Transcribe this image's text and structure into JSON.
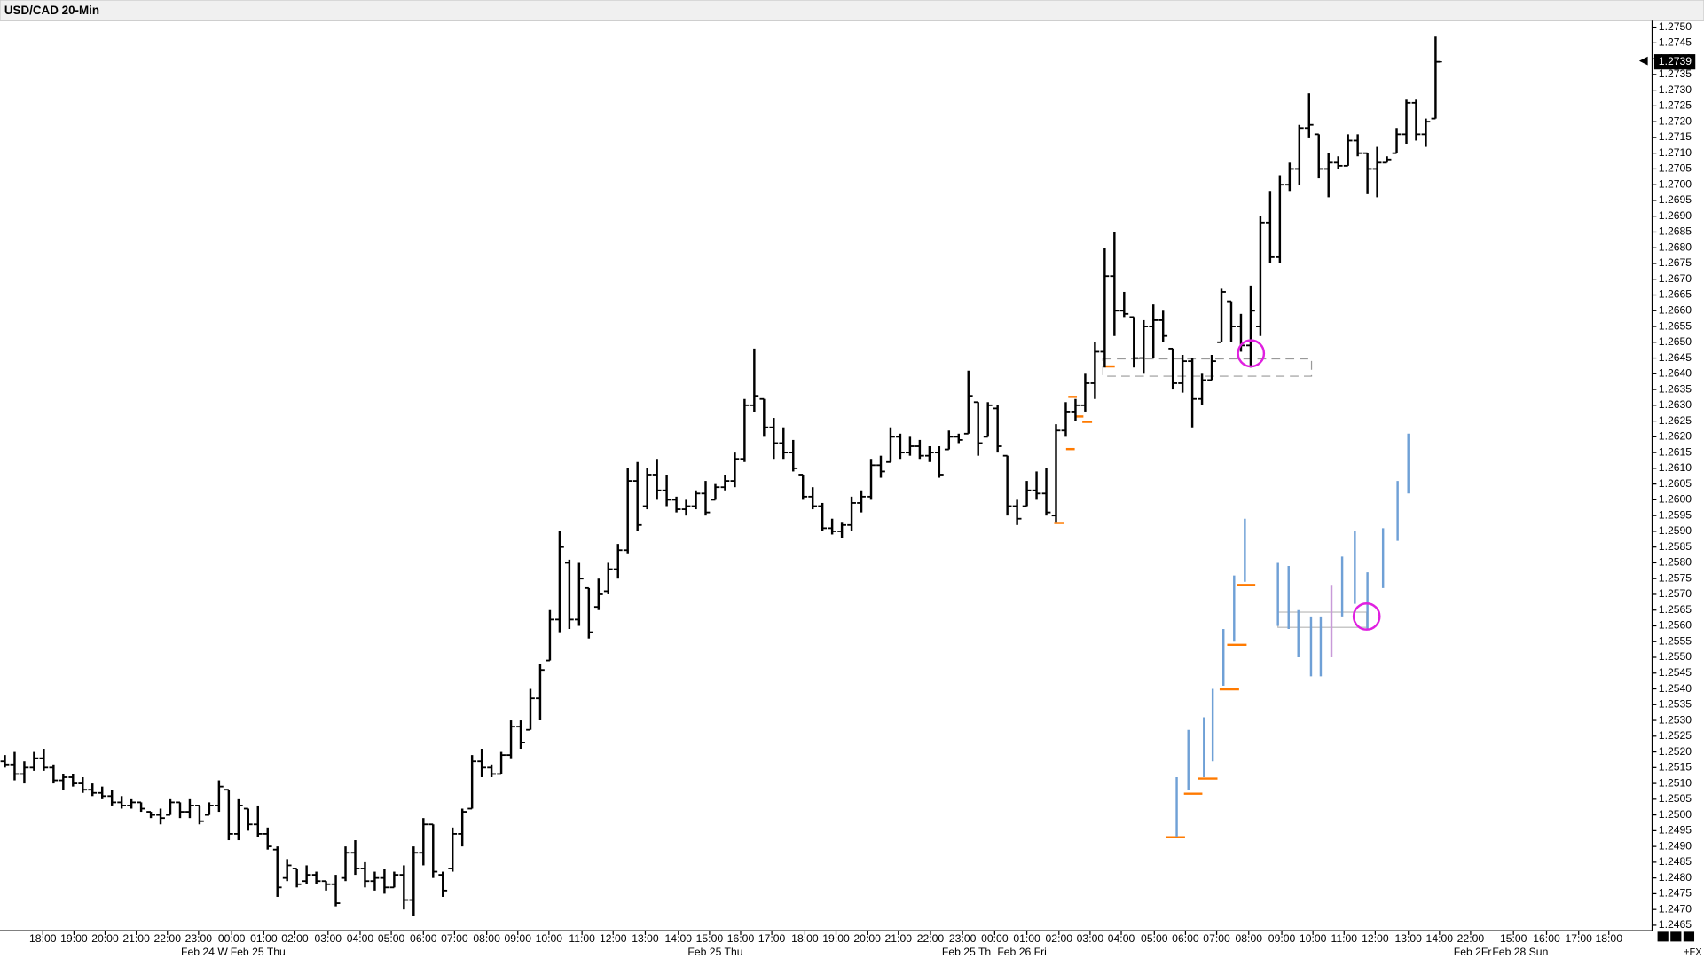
{
  "chart_data": {
    "type": "ohlc",
    "title": "USD/CAD 20-Min",
    "footer_label": "+FX",
    "color": "#000000",
    "open": [
      1.2517,
      1.2516,
      1.2513,
      1.2515,
      1.2518,
      1.2515,
      1.2511,
      1.2512,
      1.251,
      1.2508,
      1.2507,
      1.2506,
      1.2504,
      1.2503,
      1.2504,
      1.2501,
      1.25,
      1.25,
      1.2504,
      1.2501,
      1.2503,
      1.25,
      1.2503,
      1.2508,
      1.2494,
      1.2502,
      1.2497,
      1.2494,
      1.2489,
      1.248,
      1.2483,
      1.2479,
      1.2481,
      1.2479,
      1.2478,
      1.248,
      1.2488,
      1.2483,
      1.2479,
      1.248,
      1.2477,
      1.2481,
      1.2473,
      1.2488,
      1.2497,
      1.2481,
      1.2483,
      1.2494,
      1.2502,
      1.2517,
      1.2515,
      1.2513,
      1.2519,
      1.2528,
      1.2527,
      1.2537,
      1.2549,
      1.2562,
      1.258,
      1.2562,
      1.2572,
      1.2566,
      1.2571,
      1.2578,
      1.2584,
      1.2606,
      1.2598,
      1.2608,
      1.2603,
      1.26,
      1.2597,
      1.2598,
      1.2602,
      1.26,
      1.2604,
      1.2606,
      1.2613,
      1.263,
      1.2632,
      1.2623,
      1.2618,
      1.2615,
      1.2608,
      1.2601,
      1.2598,
      1.2591,
      1.259,
      1.2592,
      1.2599,
      1.2601,
      1.2611,
      1.2612,
      1.262,
      1.2615,
      1.2617,
      1.2614,
      1.2615,
      1.2616,
      1.262,
      1.2621,
      1.2631,
      1.262,
      1.2629,
      1.2614,
      1.2598,
      1.2598,
      1.2603,
      1.2602,
      1.2595,
      1.2622,
      1.2628,
      1.263,
      1.2637,
      1.2647,
      1.2671,
      1.266,
      1.2658,
      1.2645,
      1.2655,
      1.2657,
      1.2648,
      1.2637,
      1.2644,
      1.2632,
      1.2638,
      1.265,
      1.2663,
      1.2655,
      1.2649,
      1.2655,
      1.2688,
      1.2677,
      1.27,
      1.2705,
      1.2718,
      1.2716,
      1.2705,
      1.2707,
      1.2706,
      1.2714,
      1.271,
      1.2705,
      1.2707,
      1.271,
      1.2716,
      1.2726,
      1.2716,
      1.2721
    ],
    "high": [
      1.2519,
      1.252,
      1.2517,
      1.252,
      1.2521,
      1.2516,
      1.2513,
      1.2513,
      1.2512,
      1.251,
      1.2509,
      1.2508,
      1.2506,
      1.2505,
      1.2504,
      1.2501,
      1.2502,
      1.2505,
      1.2504,
      1.2505,
      1.2503,
      1.2504,
      1.2511,
      1.2508,
      1.2505,
      1.2502,
      1.2503,
      1.2496,
      1.249,
      1.2486,
      1.2483,
      1.2484,
      1.2482,
      1.2479,
      1.2481,
      1.249,
      1.2492,
      1.2485,
      1.2482,
      1.2483,
      1.2482,
      1.2484,
      1.249,
      1.2499,
      1.2497,
      1.2482,
      1.2496,
      1.2502,
      1.2519,
      1.2521,
      1.2516,
      1.252,
      1.253,
      1.253,
      1.254,
      1.2548,
      1.2565,
      1.259,
      1.2581,
      1.258,
      1.2572,
      1.2575,
      1.258,
      1.2586,
      1.261,
      1.2612,
      1.261,
      1.2613,
      1.2608,
      1.2601,
      1.26,
      1.2603,
      1.2606,
      1.2605,
      1.2608,
      1.2615,
      1.2632,
      1.2648,
      1.2632,
      1.2626,
      1.2623,
      1.2619,
      1.2608,
      1.2604,
      1.2599,
      1.2594,
      1.2593,
      1.2601,
      1.2603,
      1.2613,
      1.2614,
      1.2623,
      1.2621,
      1.262,
      1.2619,
      1.2617,
      1.2617,
      1.2622,
      1.2621,
      1.2641,
      1.2631,
      1.2631,
      1.263,
      1.2614,
      1.26,
      1.2606,
      1.2609,
      1.261,
      1.2624,
      1.2631,
      1.2632,
      1.264,
      1.265,
      1.268,
      1.2685,
      1.2666,
      1.2658,
      1.2657,
      1.2662,
      1.266,
      1.2648,
      1.2646,
      1.2645,
      1.264,
      1.2646,
      1.2667,
      1.2663,
      1.2659,
      1.2668,
      1.269,
      1.2698,
      1.2703,
      1.2707,
      1.2719,
      1.2729,
      1.2716,
      1.271,
      1.2709,
      1.2716,
      1.2716,
      1.271,
      1.2712,
      1.2709,
      1.2718,
      1.2727,
      1.2727,
      1.2721,
      1.2747
    ],
    "low": [
      1.2515,
      1.2511,
      1.251,
      1.2514,
      1.2514,
      1.251,
      1.2508,
      1.2509,
      1.2507,
      1.2506,
      1.2505,
      1.2503,
      1.2502,
      1.2502,
      1.2501,
      1.2499,
      1.2497,
      1.25,
      1.2499,
      1.2499,
      1.2497,
      1.25,
      1.2501,
      1.2492,
      1.2492,
      1.2495,
      1.2493,
      1.2489,
      1.2474,
      1.2479,
      1.2477,
      1.2478,
      1.2478,
      1.2476,
      1.2471,
      1.2479,
      1.2481,
      1.2477,
      1.2476,
      1.2475,
      1.2477,
      1.247,
      1.2468,
      1.2484,
      1.248,
      1.2474,
      1.2482,
      1.249,
      1.2502,
      1.2512,
      1.2512,
      1.2513,
      1.2518,
      1.2521,
      1.2527,
      1.253,
      1.2549,
      1.2558,
      1.2559,
      1.256,
      1.2556,
      1.2565,
      1.257,
      1.2575,
      1.2583,
      1.259,
      1.2597,
      1.26,
      1.2598,
      1.2596,
      1.2595,
      1.2597,
      1.2595,
      1.26,
      1.2603,
      1.2604,
      1.2612,
      1.2628,
      1.262,
      1.2613,
      1.2613,
      1.2609,
      1.26,
      1.2597,
      1.259,
      1.2589,
      1.2588,
      1.259,
      1.2596,
      1.26,
      1.2607,
      1.2612,
      1.2613,
      1.2614,
      1.2613,
      1.2612,
      1.2607,
      1.2616,
      1.2618,
      1.2621,
      1.2614,
      1.262,
      1.2615,
      1.2595,
      1.2592,
      1.2598,
      1.26,
      1.2595,
      1.2593,
      1.262,
      1.2625,
      1.2628,
      1.2632,
      1.2642,
      1.2652,
      1.2658,
      1.2642,
      1.264,
      1.2645,
      1.265,
      1.2635,
      1.2634,
      1.2623,
      1.263,
      1.2638,
      1.265,
      1.265,
      1.2647,
      1.2642,
      1.2652,
      1.2675,
      1.2675,
      1.2698,
      1.27,
      1.2715,
      1.2702,
      1.2696,
      1.2705,
      1.2706,
      1.2709,
      1.2697,
      1.2696,
      1.2707,
      1.271,
      1.2713,
      1.2714,
      1.2712,
      1.2721
    ],
    "close": [
      1.2516,
      1.2513,
      1.2515,
      1.2518,
      1.2515,
      1.2511,
      1.2512,
      1.251,
      1.2508,
      1.2507,
      1.2506,
      1.2504,
      1.2503,
      1.2504,
      1.2502,
      1.25,
      1.2499,
      1.2504,
      1.2501,
      1.2503,
      1.2498,
      1.2503,
      1.2509,
      1.2494,
      1.2503,
      1.2497,
      1.2494,
      1.249,
      1.2477,
      1.2484,
      1.2478,
      1.2481,
      1.2479,
      1.2478,
      1.2472,
      1.2488,
      1.2483,
      1.2479,
      1.248,
      1.2477,
      1.2481,
      1.2473,
      1.2488,
      1.2497,
      1.2482,
      1.2476,
      1.2494,
      1.2501,
      1.2517,
      1.2515,
      1.2513,
      1.2519,
      1.2528,
      1.2523,
      1.2537,
      1.2546,
      1.2562,
      1.2585,
      1.2562,
      1.2575,
      1.2558,
      1.257,
      1.2578,
      1.2584,
      1.2606,
      1.2592,
      1.2608,
      1.2603,
      1.26,
      1.2597,
      1.2598,
      1.2602,
      1.2596,
      1.2604,
      1.2606,
      1.2613,
      1.263,
      1.2633,
      1.2623,
      1.2618,
      1.2615,
      1.261,
      1.2601,
      1.2598,
      1.2591,
      1.259,
      1.2592,
      1.2599,
      1.2601,
      1.2611,
      1.2609,
      1.262,
      1.2615,
      1.2617,
      1.2614,
      1.2615,
      1.2608,
      1.262,
      1.2619,
      1.2633,
      1.2618,
      1.263,
      1.2617,
      1.2598,
      1.2594,
      1.2603,
      1.2602,
      1.2596,
      1.2622,
      1.2628,
      1.263,
      1.2637,
      1.2647,
      1.2671,
      1.266,
      1.2659,
      1.2645,
      1.2655,
      1.2657,
      1.2652,
      1.2637,
      1.2644,
      1.2632,
      1.2638,
      1.2644,
      1.2666,
      1.2655,
      1.2649,
      1.266,
      1.2688,
      1.2677,
      1.27,
      1.2705,
      1.2718,
      1.2719,
      1.2705,
      1.2707,
      1.2706,
      1.2714,
      1.271,
      1.2705,
      1.2707,
      1.2708,
      1.2716,
      1.2726,
      1.2716,
      1.272,
      1.2739
    ],
    "overlays": [
      {
        "color": "#6fa0d6",
        "x": [
          120.4,
          121.6,
          123.2,
          124.1,
          125.2,
          126.3,
          127.4,
          130.8,
          131.9,
          132.9,
          134.2,
          135.2,
          137.4,
          138.7,
          140,
          141.6,
          143.1,
          144.2
        ],
        "high": [
          1.2512,
          1.2527,
          1.2531,
          1.254,
          1.2559,
          1.2576,
          1.2594,
          1.258,
          1.2579,
          1.2565,
          1.2563,
          1.2563,
          1.2582,
          1.259,
          1.2577,
          1.2591,
          1.2606,
          1.2621
        ],
        "low": [
          1.2493,
          1.2508,
          1.2512,
          1.2517,
          1.2541,
          1.2555,
          1.2574,
          1.256,
          1.2559,
          1.255,
          1.2544,
          1.2544,
          1.2563,
          1.2567,
          1.2559,
          1.2572,
          1.2587,
          1.2602
        ]
      },
      {
        "color": "#c89ad8",
        "x": [
          136.3
        ],
        "high": [
          1.2573
        ],
        "low": [
          1.255
        ]
      }
    ],
    "xlim": [
      -0.5,
      167.8
    ],
    "ylim": [
      1.24636,
      1.27524
    ],
    "xticks": [
      {
        "value": 3.9,
        "label": "18:00"
      },
      {
        "value": 7.1,
        "label": "19:00"
      },
      {
        "value": 10.3,
        "label": "20:00"
      },
      {
        "value": 13.5,
        "label": "21:00"
      },
      {
        "value": 16.7,
        "label": "22:00"
      },
      {
        "value": 19.9,
        "label": "23:00"
      },
      {
        "value": 23.3,
        "label": "00:00"
      },
      {
        "value": 26.6,
        "label": "01:00"
      },
      {
        "value": 29.8,
        "label": "02:00"
      },
      {
        "value": 33.2,
        "label": "03:00"
      },
      {
        "value": 36.5,
        "label": "04:00"
      },
      {
        "value": 39.7,
        "label": "05:00"
      },
      {
        "value": 43,
        "label": "06:00"
      },
      {
        "value": 46.2,
        "label": "07:00"
      },
      {
        "value": 49.5,
        "label": "08:00"
      },
      {
        "value": 52.7,
        "label": "09:00"
      },
      {
        "value": 55.9,
        "label": "10:00"
      },
      {
        "value": 59.3,
        "label": "11:00"
      },
      {
        "value": 62.5,
        "label": "12:00"
      },
      {
        "value": 65.8,
        "label": "13:00"
      },
      {
        "value": 69.2,
        "label": "14:00"
      },
      {
        "value": 72.4,
        "label": "15:00"
      },
      {
        "value": 75.6,
        "label": "16:00"
      },
      {
        "value": 78.8,
        "label": "17:00"
      },
      {
        "value": 82.2,
        "label": "18:00"
      },
      {
        "value": 85.4,
        "label": "19:00"
      },
      {
        "value": 88.6,
        "label": "20:00"
      },
      {
        "value": 91.8,
        "label": "21:00"
      },
      {
        "value": 95.1,
        "label": "22:00"
      },
      {
        "value": 98.4,
        "label": "23:00"
      },
      {
        "value": 101.7,
        "label": "00:00"
      },
      {
        "value": 105,
        "label": "01:00"
      },
      {
        "value": 108.3,
        "label": "02:00"
      },
      {
        "value": 111.5,
        "label": "03:00"
      },
      {
        "value": 114.7,
        "label": "04:00"
      },
      {
        "value": 118.1,
        "label": "05:00"
      },
      {
        "value": 121.3,
        "label": "06:00"
      },
      {
        "value": 124.5,
        "label": "07:00"
      },
      {
        "value": 127.8,
        "label": "08:00"
      },
      {
        "value": 131.2,
        "label": "09:00"
      },
      {
        "value": 134.4,
        "label": "10:00"
      },
      {
        "value": 137.6,
        "label": "11:00"
      },
      {
        "value": 140.8,
        "label": "12:00"
      },
      {
        "value": 144.2,
        "label": "13:00"
      },
      {
        "value": 147.4,
        "label": "14:00"
      },
      {
        "value": 150.6,
        "label": "22:00"
      },
      {
        "value": 155,
        "label": "15:00"
      },
      {
        "value": 158.4,
        "label": "16:00"
      },
      {
        "value": 161.7,
        "label": "17:00"
      },
      {
        "value": 164.8,
        "label": "18:00"
      }
    ],
    "date_labels": [
      {
        "value": 20.5,
        "label": "Feb 24 W"
      },
      {
        "value": 26,
        "label": "Feb 25 Thu"
      },
      {
        "value": 73,
        "label": "Feb 25 Thu"
      },
      {
        "value": 98.8,
        "label": "Feb 25 Th"
      },
      {
        "value": 104.5,
        "label": "Feb 26 Fri"
      },
      {
        "value": 150.8,
        "label": "Feb 2Fr"
      },
      {
        "value": 155.7,
        "label": "Feb 28 Sun"
      }
    ],
    "yticks": [
      {
        "value": 1.275,
        "label": "1.2750"
      },
      1.2745,
      {
        "value": 1.274,
        "label": "1.2740"
      },
      1.2735,
      {
        "value": 1.273,
        "label": "1.2730"
      },
      1.2725,
      {
        "value": 1.272,
        "label": "1.2720"
      },
      1.2715,
      {
        "value": 1.271,
        "label": "1.2710"
      },
      1.2705,
      {
        "value": 1.27,
        "label": "1.2700"
      },
      1.2695,
      {
        "value": 1.269,
        "label": "1.2690"
      },
      1.2685,
      {
        "value": 1.268,
        "label": "1.2680"
      },
      1.2675,
      {
        "value": 1.267,
        "label": "1.2670"
      },
      1.2665,
      {
        "value": 1.266,
        "label": "1.2660"
      },
      1.2655,
      {
        "value": 1.265,
        "label": "1.2650"
      },
      1.2645,
      {
        "value": 1.264,
        "label": "1.2640"
      },
      1.2635,
      {
        "value": 1.263,
        "label": "1.2630"
      },
      1.2625,
      {
        "value": 1.262,
        "label": "1.2620"
      },
      1.2615,
      {
        "value": 1.261,
        "label": "1.2610"
      },
      1.2605,
      {
        "value": 1.26,
        "label": "1.2600"
      },
      1.2595,
      {
        "value": 1.259,
        "label": "1.2590"
      },
      1.2585,
      {
        "value": 1.258,
        "label": "1.2580"
      },
      1.2575,
      {
        "value": 1.257,
        "label": "1.2570"
      },
      1.2565,
      {
        "value": 1.256,
        "label": "1.2560"
      },
      1.2555,
      {
        "value": 1.255,
        "label": "1.2550"
      },
      1.2545,
      {
        "value": 1.254,
        "label": "1.2540"
      },
      1.2535,
      {
        "value": 1.253,
        "label": "1.2530"
      },
      1.2525,
      {
        "value": 1.252,
        "label": "1.2520"
      },
      1.2515,
      {
        "value": 1.251,
        "label": "1.2510"
      },
      1.2505,
      {
        "value": 1.25,
        "label": "1.2500"
      },
      1.2495,
      {
        "value": 1.249,
        "label": "1.2490"
      },
      1.2485,
      {
        "value": 1.248,
        "label": "1.2480"
      },
      1.2475,
      {
        "value": 1.247,
        "label": "1.2470"
      },
      1.2465
    ],
    "grid": false
  }
}
